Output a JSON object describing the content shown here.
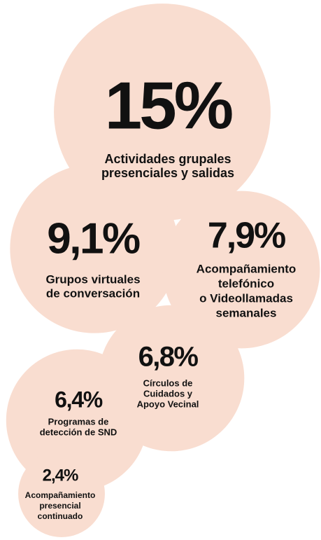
{
  "chart_data": {
    "type": "bubble",
    "categories": [
      [
        "Actividades grupales",
        "presenciales y salidas"
      ],
      [
        "Grupos virtuales",
        "de conversación"
      ],
      [
        "Acompañamiento",
        "telefónico",
        "o Videollamadas",
        "semanales"
      ],
      [
        "Círculos de",
        "Cuidados y",
        "Apoyo Vecinal"
      ],
      [
        "Programas de",
        "detección de SND"
      ],
      [
        "Acompañamiento",
        "presencial",
        "continuado"
      ]
    ],
    "values": [
      15,
      9.1,
      7.9,
      6.8,
      6.4,
      2.4
    ],
    "value_labels": [
      "15%",
      "9,1%",
      "7,9%",
      "6,8%",
      "6,4%",
      "2,4%"
    ],
    "color": "#f9ddd0"
  }
}
